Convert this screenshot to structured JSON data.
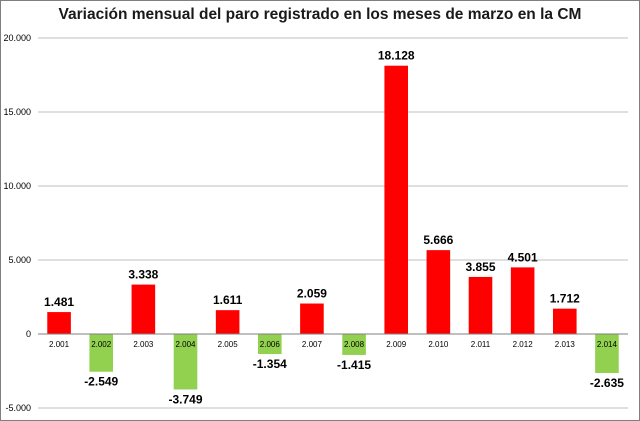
{
  "chart_data": {
    "type": "bar",
    "title": "Variación mensual del paro registrado en los meses de marzo en la CM",
    "categories": [
      "2.001",
      "2.002",
      "2.003",
      "2.004",
      "2.005",
      "2.006",
      "2.007",
      "2.008",
      "2.009",
      "2.010",
      "2.011",
      "2.012",
      "2.013",
      "2.014"
    ],
    "values": [
      1481,
      -2549,
      3338,
      -3749,
      1611,
      -1354,
      2059,
      -1415,
      18128,
      5666,
      3855,
      4501,
      1712,
      -2635
    ],
    "value_labels": [
      "1.481",
      "-2.549",
      "3.338",
      "-3.749",
      "1.611",
      "-1.354",
      "2.059",
      "-1.415",
      "18.128",
      "5.666",
      "3.855",
      "4.501",
      "1.712",
      "-2.635"
    ],
    "yticks": [
      20000,
      15000,
      10000,
      5000,
      0,
      -5000
    ],
    "ytick_labels": [
      "20.000",
      "15.000",
      "10.000",
      "5.000",
      "0",
      "-5.000"
    ],
    "ylim": [
      -5000,
      20000
    ],
    "xlabel": "",
    "ylabel": "",
    "grid": true,
    "legend": "none",
    "colors": {
      "positive": "#ff0000",
      "negative": "#92d050",
      "grid": "#bfbfbf",
      "axis": "#7f7f7f"
    }
  }
}
